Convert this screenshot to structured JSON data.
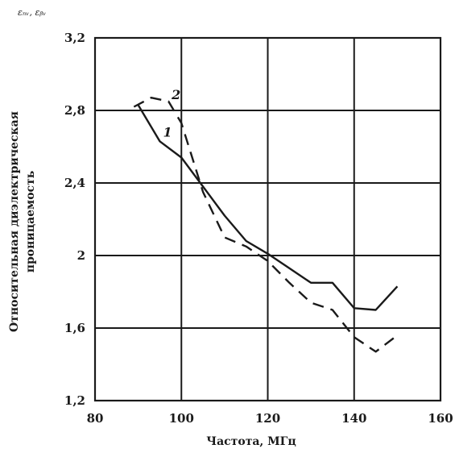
{
  "chart_data": {
    "type": "line",
    "corner_label": "εₙᵥ, εᵦᵥ",
    "xlabel": "Частота, МГц",
    "ylabel_line1": "Относительная диэлектрическая",
    "ylabel_line2": "проницаемость",
    "xlim": [
      80,
      160
    ],
    "ylim": [
      1.2,
      3.2
    ],
    "x_ticks": [
      80,
      100,
      120,
      140,
      160
    ],
    "y_ticks": [
      1.2,
      1.6,
      2,
      2.4,
      2.8,
      3.2
    ],
    "x_tick_labels": [
      "80",
      "100",
      "120",
      "140",
      "160"
    ],
    "y_tick_labels": [
      "1,2",
      "1,6",
      "2",
      "2,4",
      "2,8",
      "3,2"
    ],
    "grid": true,
    "series": [
      {
        "name": "1",
        "style": "solid",
        "color": "#1a1a1a",
        "x": [
          90,
          95,
          100,
          105,
          110,
          115,
          120,
          125,
          130,
          135,
          140,
          145,
          150
        ],
        "y": [
          2.83,
          2.63,
          2.54,
          2.38,
          2.22,
          2.08,
          2.01,
          1.93,
          1.85,
          1.85,
          1.71,
          1.7,
          1.83
        ]
      },
      {
        "name": "2",
        "style": "dashed",
        "color": "#1a1a1a",
        "x": [
          89,
          93,
          97,
          100,
          105,
          110,
          115,
          120,
          125,
          130,
          135,
          140,
          145,
          150
        ],
        "y": [
          2.82,
          2.87,
          2.85,
          2.73,
          2.35,
          2.1,
          2.05,
          1.97,
          1.85,
          1.74,
          1.7,
          1.55,
          1.47,
          1.56
        ]
      }
    ]
  }
}
